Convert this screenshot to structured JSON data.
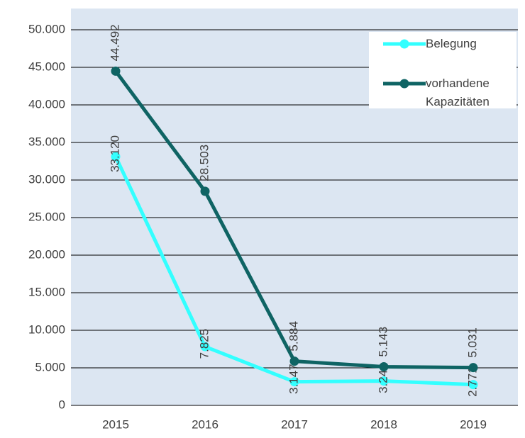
{
  "chart_data": {
    "type": "line",
    "categories": [
      "2015",
      "2016",
      "2017",
      "2018",
      "2019"
    ],
    "series": [
      {
        "name": "Belegung",
        "color": "#33ffff",
        "values": [
          33120,
          7825,
          3147,
          3240,
          2771
        ],
        "value_labels": [
          "33.120",
          "7.825",
          "3.147",
          "3.240",
          "2.771"
        ]
      },
      {
        "name": "vorhandene Kapazitäten",
        "color": "#0f6464",
        "values": [
          44492,
          28503,
          5884,
          5143,
          5031
        ],
        "value_labels": [
          "44.492",
          "28.503",
          "5.884",
          "5.143",
          "5.031"
        ]
      }
    ],
    "ylim": [
      0,
      50000
    ],
    "yticks": [
      0,
      {
        "value": 5000,
        "label": "5.000"
      },
      {
        "value": 10000,
        "label": "10.000"
      },
      {
        "value": 15000,
        "label": "15.000"
      },
      {
        "value": 20000,
        "label": "20.000"
      },
      {
        "value": 25000,
        "label": "25.000"
      },
      {
        "value": 30000,
        "label": "30.000"
      },
      {
        "value": 35000,
        "label": "35.000"
      },
      {
        "value": 40000,
        "label": "40.000"
      },
      {
        "value": 45000,
        "label": "45.000"
      },
      {
        "value": 50000,
        "label": "50.000"
      }
    ],
    "grid": true,
    "legend": "upper right"
  }
}
